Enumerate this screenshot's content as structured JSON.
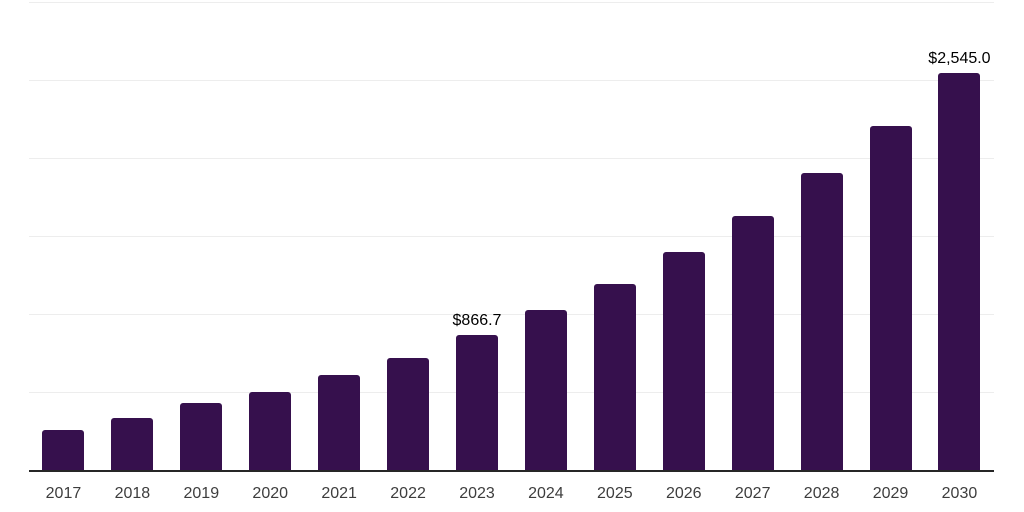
{
  "chart_data": {
    "type": "bar",
    "title": "",
    "xlabel": "",
    "ylabel": "",
    "categories": [
      "2017",
      "2018",
      "2019",
      "2020",
      "2021",
      "2022",
      "2023",
      "2024",
      "2025",
      "2026",
      "2027",
      "2028",
      "2029",
      "2030"
    ],
    "values": [
      254,
      335,
      431,
      500,
      607,
      720,
      866.7,
      1024,
      1194,
      1399,
      1630,
      1906,
      2207,
      2545
    ],
    "data_labels": [
      "",
      "",
      "",
      "",
      "",
      "",
      "$866.7",
      "",
      "",
      "",
      "",
      "",
      "",
      "$2,545.0"
    ],
    "ylim": [
      0,
      3000
    ],
    "gridline_step": 500,
    "grid": true,
    "legend": false,
    "y_tick_labels_visible": false
  },
  "colors": {
    "bar": "#36104d",
    "gridline": "#ededed",
    "axis_line": "#262626",
    "tick_label": "#3d3d3d",
    "data_label": "#000000",
    "background": "#ffffff"
  }
}
